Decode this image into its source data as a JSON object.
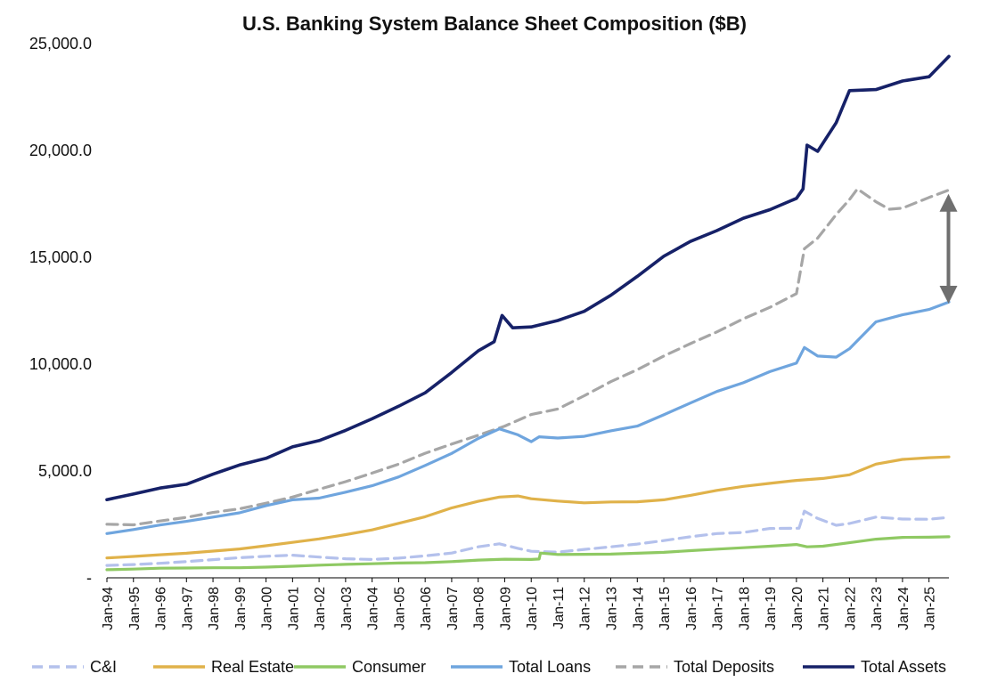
{
  "chart_data": {
    "type": "line",
    "title": "U.S. Banking System Balance Sheet Composition ($B)",
    "xlabel": "",
    "ylabel": "",
    "ylim": [
      0,
      25000
    ],
    "yticks": [
      {
        "value": 0,
        "label": "-"
      },
      {
        "value": 5000,
        "label": "5,000.0"
      },
      {
        "value": 10000,
        "label": "10,000.0"
      },
      {
        "value": 15000,
        "label": "15,000.0"
      },
      {
        "value": 20000,
        "label": "20,000.0"
      },
      {
        "value": 25000,
        "label": "25,000.0"
      }
    ],
    "xlim": [
      1994.0,
      2025.75
    ],
    "xticks": [
      {
        "year": 1994,
        "label": "Jan-94"
      },
      {
        "year": 1995,
        "label": "Jan-95"
      },
      {
        "year": 1996,
        "label": "Jan-96"
      },
      {
        "year": 1997,
        "label": "Jan-97"
      },
      {
        "year": 1998,
        "label": "Jan-98"
      },
      {
        "year": 1999,
        "label": "Jan-99"
      },
      {
        "year": 2000,
        "label": "Jan-00"
      },
      {
        "year": 2001,
        "label": "Jan-01"
      },
      {
        "year": 2002,
        "label": "Jan-02"
      },
      {
        "year": 2003,
        "label": "Jan-03"
      },
      {
        "year": 2004,
        "label": "Jan-04"
      },
      {
        "year": 2005,
        "label": "Jan-05"
      },
      {
        "year": 2006,
        "label": "Jan-06"
      },
      {
        "year": 2007,
        "label": "Jan-07"
      },
      {
        "year": 2008,
        "label": "Jan-08"
      },
      {
        "year": 2009,
        "label": "Jan-09"
      },
      {
        "year": 2010,
        "label": "Jan-10"
      },
      {
        "year": 2011,
        "label": "Jan-11"
      },
      {
        "year": 2012,
        "label": "Jan-12"
      },
      {
        "year": 2013,
        "label": "Jan-13"
      },
      {
        "year": 2014,
        "label": "Jan-14"
      },
      {
        "year": 2015,
        "label": "Jan-15"
      },
      {
        "year": 2016,
        "label": "Jan-16"
      },
      {
        "year": 2017,
        "label": "Jan-17"
      },
      {
        "year": 2018,
        "label": "Jan-18"
      },
      {
        "year": 2019,
        "label": "Jan-19"
      },
      {
        "year": 2020,
        "label": "Jan-20"
      },
      {
        "year": 2021,
        "label": "Jan-21"
      },
      {
        "year": 2022,
        "label": "Jan-22"
      },
      {
        "year": 2023,
        "label": "Jan-23"
      },
      {
        "year": 2024,
        "label": "Jan-24"
      },
      {
        "year": 2025,
        "label": "Jan-25"
      }
    ],
    "grid": false,
    "legend_position": "bottom",
    "annotation": {
      "type": "double-arrow",
      "x": 2025.75,
      "y_from": 17800,
      "y_to": 13000,
      "color": "#6f6f6f"
    },
    "series": [
      {
        "name": "C&I",
        "color": "#b4c1ec",
        "dash": "dashed",
        "points": [
          [
            1994.0,
            580
          ],
          [
            1995.0,
            620
          ],
          [
            1996.0,
            680
          ],
          [
            1997.0,
            760
          ],
          [
            1998.0,
            850
          ],
          [
            1999.0,
            940
          ],
          [
            2000.0,
            1010
          ],
          [
            2001.0,
            1060
          ],
          [
            2002.0,
            970
          ],
          [
            2003.0,
            890
          ],
          [
            2004.0,
            860
          ],
          [
            2005.0,
            920
          ],
          [
            2006.0,
            1030
          ],
          [
            2007.0,
            1160
          ],
          [
            2008.0,
            1450
          ],
          [
            2008.8,
            1590
          ],
          [
            2009.5,
            1380
          ],
          [
            2010.0,
            1240
          ],
          [
            2011.0,
            1200
          ],
          [
            2012.0,
            1330
          ],
          [
            2013.0,
            1450
          ],
          [
            2014.0,
            1580
          ],
          [
            2015.0,
            1740
          ],
          [
            2016.0,
            1920
          ],
          [
            2017.0,
            2070
          ],
          [
            2018.0,
            2120
          ],
          [
            2019.0,
            2310
          ],
          [
            2020.1,
            2320
          ],
          [
            2020.3,
            3120
          ],
          [
            2020.8,
            2780
          ],
          [
            2021.5,
            2460
          ],
          [
            2022.0,
            2540
          ],
          [
            2023.0,
            2840
          ],
          [
            2024.0,
            2750
          ],
          [
            2025.0,
            2740
          ],
          [
            2025.75,
            2830
          ]
        ]
      },
      {
        "name": "Real Estate",
        "color": "#e0b24a",
        "dash": "solid",
        "points": [
          [
            1994.0,
            930
          ],
          [
            1995.0,
            1000
          ],
          [
            1996.0,
            1080
          ],
          [
            1997.0,
            1150
          ],
          [
            1998.0,
            1250
          ],
          [
            1999.0,
            1350
          ],
          [
            2000.0,
            1500
          ],
          [
            2001.0,
            1660
          ],
          [
            2002.0,
            1820
          ],
          [
            2003.0,
            2020
          ],
          [
            2004.0,
            2240
          ],
          [
            2005.0,
            2550
          ],
          [
            2006.0,
            2860
          ],
          [
            2007.0,
            3270
          ],
          [
            2008.0,
            3580
          ],
          [
            2008.8,
            3780
          ],
          [
            2009.5,
            3830
          ],
          [
            2010.0,
            3700
          ],
          [
            2011.0,
            3590
          ],
          [
            2012.0,
            3510
          ],
          [
            2013.0,
            3550
          ],
          [
            2014.0,
            3560
          ],
          [
            2015.0,
            3650
          ],
          [
            2016.0,
            3860
          ],
          [
            2017.0,
            4090
          ],
          [
            2018.0,
            4280
          ],
          [
            2019.0,
            4420
          ],
          [
            2020.0,
            4560
          ],
          [
            2021.0,
            4650
          ],
          [
            2022.0,
            4820
          ],
          [
            2023.0,
            5320
          ],
          [
            2024.0,
            5540
          ],
          [
            2025.0,
            5620
          ],
          [
            2025.75,
            5660
          ]
        ]
      },
      {
        "name": "Consumer",
        "color": "#8fc963",
        "dash": "solid",
        "points": [
          [
            1994.0,
            380
          ],
          [
            1995.0,
            410
          ],
          [
            1996.0,
            450
          ],
          [
            1997.0,
            460
          ],
          [
            1998.0,
            470
          ],
          [
            1999.0,
            470
          ],
          [
            2000.0,
            500
          ],
          [
            2001.0,
            540
          ],
          [
            2002.0,
            590
          ],
          [
            2003.0,
            630
          ],
          [
            2004.0,
            660
          ],
          [
            2005.0,
            690
          ],
          [
            2006.0,
            710
          ],
          [
            2007.0,
            760
          ],
          [
            2008.0,
            830
          ],
          [
            2009.0,
            870
          ],
          [
            2010.0,
            860
          ],
          [
            2010.3,
            880
          ],
          [
            2010.35,
            1160
          ],
          [
            2011.0,
            1090
          ],
          [
            2012.0,
            1100
          ],
          [
            2013.0,
            1110
          ],
          [
            2014.0,
            1150
          ],
          [
            2015.0,
            1190
          ],
          [
            2016.0,
            1270
          ],
          [
            2017.0,
            1340
          ],
          [
            2018.0,
            1410
          ],
          [
            2019.0,
            1480
          ],
          [
            2020.0,
            1560
          ],
          [
            2020.4,
            1450
          ],
          [
            2021.0,
            1480
          ],
          [
            2022.0,
            1640
          ],
          [
            2023.0,
            1810
          ],
          [
            2024.0,
            1890
          ],
          [
            2025.0,
            1900
          ],
          [
            2025.75,
            1920
          ]
        ]
      },
      {
        "name": "Total Loans",
        "color": "#6fa5de",
        "dash": "solid",
        "points": [
          [
            1994.0,
            2070
          ],
          [
            1995.0,
            2260
          ],
          [
            1996.0,
            2470
          ],
          [
            1997.0,
            2640
          ],
          [
            1998.0,
            2840
          ],
          [
            1999.0,
            3040
          ],
          [
            2000.0,
            3380
          ],
          [
            2001.0,
            3650
          ],
          [
            2002.0,
            3730
          ],
          [
            2003.0,
            4010
          ],
          [
            2004.0,
            4310
          ],
          [
            2005.0,
            4720
          ],
          [
            2006.0,
            5260
          ],
          [
            2007.0,
            5820
          ],
          [
            2008.0,
            6520
          ],
          [
            2008.8,
            6970
          ],
          [
            2009.5,
            6690
          ],
          [
            2010.0,
            6370
          ],
          [
            2010.3,
            6600
          ],
          [
            2011.0,
            6540
          ],
          [
            2012.0,
            6620
          ],
          [
            2013.0,
            6880
          ],
          [
            2014.0,
            7100
          ],
          [
            2015.0,
            7630
          ],
          [
            2016.0,
            8180
          ],
          [
            2017.0,
            8720
          ],
          [
            2018.0,
            9130
          ],
          [
            2019.0,
            9650
          ],
          [
            2020.0,
            10050
          ],
          [
            2020.3,
            10780
          ],
          [
            2020.8,
            10380
          ],
          [
            2021.5,
            10330
          ],
          [
            2022.0,
            10720
          ],
          [
            2023.0,
            11980
          ],
          [
            2024.0,
            12310
          ],
          [
            2025.0,
            12560
          ],
          [
            2025.75,
            12910
          ]
        ]
      },
      {
        "name": "Total Deposits",
        "color": "#a6a6a6",
        "dash": "dashed",
        "points": [
          [
            1994.0,
            2510
          ],
          [
            1995.0,
            2480
          ],
          [
            1996.0,
            2660
          ],
          [
            1997.0,
            2830
          ],
          [
            1998.0,
            3060
          ],
          [
            1999.0,
            3230
          ],
          [
            2000.0,
            3490
          ],
          [
            2001.0,
            3780
          ],
          [
            2002.0,
            4140
          ],
          [
            2003.0,
            4500
          ],
          [
            2004.0,
            4900
          ],
          [
            2005.0,
            5320
          ],
          [
            2006.0,
            5830
          ],
          [
            2007.0,
            6260
          ],
          [
            2008.0,
            6670
          ],
          [
            2009.0,
            7100
          ],
          [
            2010.0,
            7640
          ],
          [
            2011.0,
            7900
          ],
          [
            2012.0,
            8520
          ],
          [
            2013.0,
            9180
          ],
          [
            2014.0,
            9740
          ],
          [
            2015.0,
            10380
          ],
          [
            2016.0,
            10960
          ],
          [
            2017.0,
            11510
          ],
          [
            2018.0,
            12120
          ],
          [
            2019.0,
            12660
          ],
          [
            2020.0,
            13300
          ],
          [
            2020.3,
            15400
          ],
          [
            2020.8,
            15900
          ],
          [
            2021.5,
            17000
          ],
          [
            2022.0,
            17700
          ],
          [
            2022.3,
            18200
          ],
          [
            2023.0,
            17600
          ],
          [
            2023.5,
            17250
          ],
          [
            2024.0,
            17300
          ],
          [
            2025.0,
            17800
          ],
          [
            2025.75,
            18150
          ]
        ]
      },
      {
        "name": "Total Assets",
        "color": "#162168",
        "dash": "solid",
        "points": [
          [
            1994.0,
            3660
          ],
          [
            1995.0,
            3920
          ],
          [
            1996.0,
            4200
          ],
          [
            1997.0,
            4380
          ],
          [
            1998.0,
            4850
          ],
          [
            1999.0,
            5280
          ],
          [
            2000.0,
            5590
          ],
          [
            2001.0,
            6130
          ],
          [
            2002.0,
            6420
          ],
          [
            2003.0,
            6900
          ],
          [
            2004.0,
            7440
          ],
          [
            2005.0,
            8030
          ],
          [
            2006.0,
            8660
          ],
          [
            2007.0,
            9610
          ],
          [
            2008.0,
            10620
          ],
          [
            2008.6,
            11050
          ],
          [
            2008.9,
            12280
          ],
          [
            2009.3,
            11700
          ],
          [
            2010.0,
            11740
          ],
          [
            2011.0,
            12040
          ],
          [
            2012.0,
            12470
          ],
          [
            2013.0,
            13220
          ],
          [
            2014.0,
            14110
          ],
          [
            2015.0,
            15050
          ],
          [
            2016.0,
            15740
          ],
          [
            2017.0,
            16250
          ],
          [
            2018.0,
            16830
          ],
          [
            2019.0,
            17230
          ],
          [
            2020.0,
            17760
          ],
          [
            2020.25,
            18200
          ],
          [
            2020.4,
            20250
          ],
          [
            2020.8,
            19960
          ],
          [
            2021.5,
            21300
          ],
          [
            2022.0,
            22800
          ],
          [
            2023.0,
            22850
          ],
          [
            2024.0,
            23250
          ],
          [
            2025.0,
            23450
          ],
          [
            2025.75,
            24400
          ]
        ]
      }
    ]
  }
}
